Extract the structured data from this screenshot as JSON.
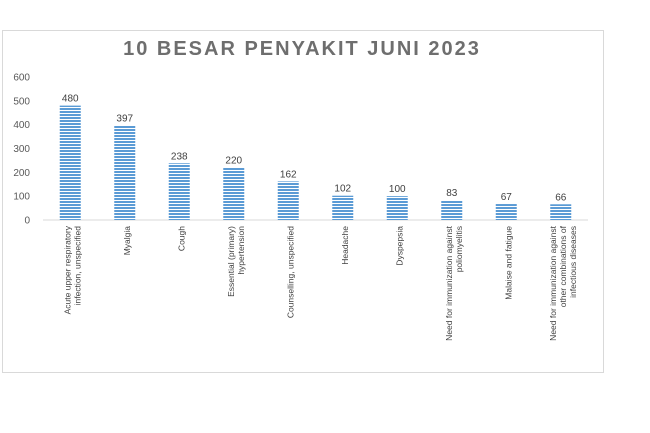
{
  "chart_data": {
    "type": "bar",
    "title": "10 BESAR PENYAKIT JUNI 2023",
    "categories": [
      [
        "Acute upper respiratory",
        "infection, unspecified"
      ],
      [
        "Myalgia"
      ],
      [
        "Cough"
      ],
      [
        "Essential (primary)",
        "hypertension"
      ],
      [
        "Counselling, unspecified"
      ],
      [
        "Headache"
      ],
      [
        "Dyspepsia"
      ],
      [
        "Need for immunization against",
        "poliomyelitis"
      ],
      [
        "Malaise and fatigue"
      ],
      [
        "Need for immunization against",
        "other combinations of",
        "infectious diseases"
      ]
    ],
    "values": [
      480,
      397,
      238,
      220,
      162,
      102,
      100,
      83,
      67,
      66
    ],
    "yticks": [
      0,
      100,
      200,
      300,
      400,
      500,
      600
    ],
    "ylim": [
      0,
      600
    ],
    "bar_color": "#5b9bd5",
    "stripe_color": "#ffffff",
    "grid": false,
    "legend": "none"
  }
}
